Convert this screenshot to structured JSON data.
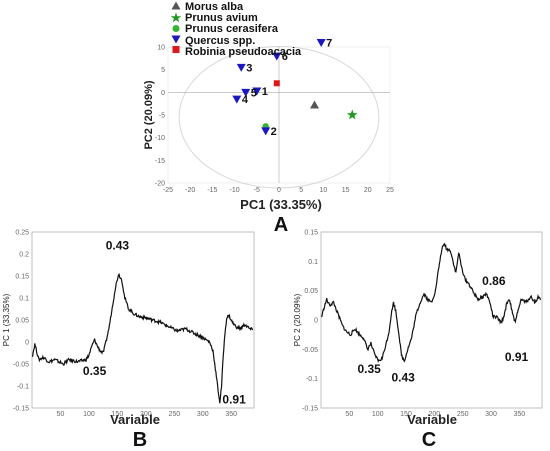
{
  "panels": {
    "A": "A",
    "B": "B",
    "C": "C"
  },
  "chart_data": [
    {
      "panel": "A",
      "type": "scatter",
      "xlabel": "PC1 (33.35%)",
      "ylabel": "PC2 (20.09%)",
      "xlim": [
        -25,
        25
      ],
      "ylim": [
        -20,
        10
      ],
      "xticks": [
        -25,
        -20,
        -15,
        -10,
        -5,
        0,
        5,
        10,
        15,
        20,
        25
      ],
      "yticks": [
        10,
        5,
        0,
        -5,
        -10,
        -15,
        -20
      ],
      "reference_lines": [
        0,
        0
      ],
      "confidence_ellipse": true,
      "legend_position": "top-left",
      "series": [
        {
          "name": "Morus alba",
          "marker": "triangle-up",
          "color": "#555555",
          "points": [
            {
              "x": 8,
              "y": -2.8
            }
          ]
        },
        {
          "name": "Prunus avium",
          "marker": "star",
          "color": "#1e9b1e",
          "points": [
            {
              "x": 16.5,
              "y": -5
            }
          ]
        },
        {
          "name": "Prunus cerasifera",
          "marker": "circle",
          "color": "#2fb52f",
          "points": [
            {
              "x": -3,
              "y": -7.5
            }
          ]
        },
        {
          "name": "Quercus spp.",
          "marker": "triangle-down",
          "color": "#1818c8",
          "points": [
            {
              "x": -8.5,
              "y": 5.5,
              "label": "3"
            },
            {
              "x": -0.5,
              "y": 8,
              "label": "6"
            },
            {
              "x": 9.5,
              "y": 11,
              "label": "7"
            },
            {
              "x": -5,
              "y": 0.3,
              "label": "1"
            },
            {
              "x": -7.5,
              "y": 0,
              "label": "5"
            },
            {
              "x": -9.5,
              "y": -1.5,
              "label": "4"
            },
            {
              "x": -3,
              "y": -8.5,
              "label": "2"
            }
          ]
        },
        {
          "name": "Robinia pseudoacacia",
          "marker": "square",
          "color": "#e01818",
          "points": [
            {
              "x": -0.5,
              "y": 2
            }
          ]
        }
      ]
    },
    {
      "panel": "B",
      "type": "line",
      "xlabel": "Variable",
      "ylabel": "PC 1 (33.35%)",
      "xlim": [
        0,
        390
      ],
      "ylim": [
        -0.15,
        0.25
      ],
      "xticks": [
        50,
        100,
        150,
        200,
        250,
        300,
        350
      ],
      "yticks": [
        0.25,
        0.2,
        0.15,
        0.1,
        0.05,
        0,
        -0.05,
        -0.1,
        -0.15
      ],
      "annotations": [
        {
          "text": "0.43",
          "x": 150,
          "y": 0.21
        },
        {
          "text": "0.35",
          "x": 110,
          "y": -0.075
        },
        {
          "text": "0.91",
          "x": 355,
          "y": -0.14
        }
      ],
      "knots": [
        [
          1,
          -0.03
        ],
        [
          5,
          -0.005
        ],
        [
          12,
          -0.04
        ],
        [
          20,
          -0.035
        ],
        [
          30,
          -0.045
        ],
        [
          40,
          -0.04
        ],
        [
          55,
          -0.05
        ],
        [
          65,
          -0.04
        ],
        [
          80,
          -0.045
        ],
        [
          95,
          -0.04
        ],
        [
          100,
          -0.03
        ],
        [
          105,
          -0.01
        ],
        [
          110,
          0.005
        ],
        [
          115,
          -0.01
        ],
        [
          120,
          -0.02
        ],
        [
          125,
          -0.025
        ],
        [
          130,
          0
        ],
        [
          135,
          0.03
        ],
        [
          140,
          0.07
        ],
        [
          146,
          0.12
        ],
        [
          152,
          0.155
        ],
        [
          158,
          0.14
        ],
        [
          163,
          0.1
        ],
        [
          170,
          0.075
        ],
        [
          178,
          0.065
        ],
        [
          188,
          0.058
        ],
        [
          200,
          0.055
        ],
        [
          212,
          0.05
        ],
        [
          225,
          0.045
        ],
        [
          240,
          0.035
        ],
        [
          255,
          0.025
        ],
        [
          270,
          0.03
        ],
        [
          285,
          0.02
        ],
        [
          300,
          0.01
        ],
        [
          312,
          0
        ],
        [
          318,
          -0.02
        ],
        [
          322,
          -0.06
        ],
        [
          326,
          -0.1
        ],
        [
          330,
          -0.138
        ],
        [
          333,
          -0.1
        ],
        [
          336,
          -0.03
        ],
        [
          339,
          0.02
        ],
        [
          342,
          0.055
        ],
        [
          346,
          0.06
        ],
        [
          352,
          0.045
        ],
        [
          358,
          0.035
        ],
        [
          366,
          0.03
        ],
        [
          374,
          0.04
        ],
        [
          382,
          0.03
        ],
        [
          388,
          0.028
        ]
      ]
    },
    {
      "panel": "C",
      "type": "line",
      "xlabel": "Variable",
      "ylabel": "PC 2 (20.09%)",
      "xlim": [
        0,
        390
      ],
      "ylim": [
        -0.15,
        0.15
      ],
      "xticks": [
        50,
        100,
        150,
        200,
        250,
        300,
        350
      ],
      "yticks": [
        0.15,
        0.1,
        0.05,
        0,
        -0.05,
        -0.1,
        -0.15
      ],
      "annotations": [
        {
          "text": "0.86",
          "x": 305,
          "y": 0.06
        },
        {
          "text": "0.35",
          "x": 85,
          "y": -0.09
        },
        {
          "text": "0.43",
          "x": 145,
          "y": -0.105
        },
        {
          "text": "0.91",
          "x": 345,
          "y": -0.07
        }
      ],
      "knots": [
        [
          1,
          0.005
        ],
        [
          5,
          0.02
        ],
        [
          10,
          0.035
        ],
        [
          15,
          0.025
        ],
        [
          22,
          0.03
        ],
        [
          30,
          0.01
        ],
        [
          38,
          -0.01
        ],
        [
          45,
          -0.02
        ],
        [
          52,
          -0.025
        ],
        [
          60,
          -0.015
        ],
        [
          68,
          -0.025
        ],
        [
          75,
          -0.03
        ],
        [
          82,
          -0.05
        ],
        [
          88,
          -0.04
        ],
        [
          95,
          -0.06
        ],
        [
          102,
          -0.07
        ],
        [
          108,
          -0.065
        ],
        [
          115,
          -0.04
        ],
        [
          120,
          -0.02
        ],
        [
          124,
          0.01
        ],
        [
          128,
          0.03
        ],
        [
          132,
          0.015
        ],
        [
          137,
          -0.02
        ],
        [
          142,
          -0.06
        ],
        [
          147,
          -0.07
        ],
        [
          153,
          -0.05
        ],
        [
          160,
          -0.03
        ],
        [
          168,
          0.01
        ],
        [
          175,
          0.03
        ],
        [
          182,
          0.045
        ],
        [
          188,
          0.035
        ],
        [
          195,
          0.03
        ],
        [
          202,
          0.05
        ],
        [
          208,
          0.09
        ],
        [
          213,
          0.12
        ],
        [
          218,
          0.13
        ],
        [
          222,
          0.12
        ],
        [
          228,
          0.12
        ],
        [
          233,
          0.1
        ],
        [
          238,
          0.08
        ],
        [
          243,
          0.115
        ],
        [
          248,
          0.09
        ],
        [
          254,
          0.07
        ],
        [
          262,
          0.06
        ],
        [
          270,
          0.045
        ],
        [
          278,
          0.035
        ],
        [
          286,
          0.04
        ],
        [
          292,
          0.045
        ],
        [
          298,
          0.03
        ],
        [
          304,
          0.005
        ],
        [
          310,
          0.005
        ],
        [
          318,
          -0.005
        ],
        [
          324,
          0.01
        ],
        [
          328,
          0.03
        ],
        [
          333,
          0.035
        ],
        [
          338,
          0.01
        ],
        [
          343,
          -0.005
        ],
        [
          348,
          0.02
        ],
        [
          354,
          0.035
        ],
        [
          362,
          0.03
        ],
        [
          370,
          0.04
        ],
        [
          378,
          0.03
        ],
        [
          384,
          0.04
        ],
        [
          388,
          0.035
        ]
      ]
    }
  ]
}
